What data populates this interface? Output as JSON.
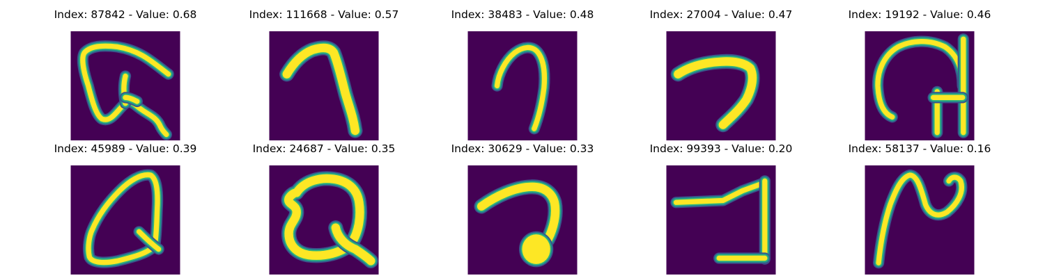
{
  "colors": {
    "background": "#440154",
    "stroke_core": "#fde725",
    "stroke_mid": "#35b779",
    "stroke_edge": "#21918c",
    "stroke_halo": "#3b528b"
  },
  "samples": [
    {
      "title": "Index: 87842 - Value: 0.68",
      "index": 87842,
      "value": 0.68
    },
    {
      "title": "Index: 111668 - Value: 0.57",
      "index": 111668,
      "value": 0.57
    },
    {
      "title": "Index: 38483 - Value: 0.48",
      "index": 38483,
      "value": 0.48
    },
    {
      "title": "Index: 27004 - Value: 0.47",
      "index": 27004,
      "value": 0.47
    },
    {
      "title": "Index: 19192 - Value: 0.46",
      "index": 19192,
      "value": 0.46
    },
    {
      "title": "Index: 45989 - Value: 0.39",
      "index": 45989,
      "value": 0.39
    },
    {
      "title": "Index: 24687 - Value: 0.35",
      "index": 24687,
      "value": 0.35
    },
    {
      "title": "Index: 30629 - Value: 0.33",
      "index": 30629,
      "value": 0.33
    },
    {
      "title": "Index: 99393 - Value: 0.20",
      "index": 99393,
      "value": 0.2
    },
    {
      "title": "Index: 58137 - Value: 0.16",
      "index": 58137,
      "value": 0.16
    }
  ]
}
